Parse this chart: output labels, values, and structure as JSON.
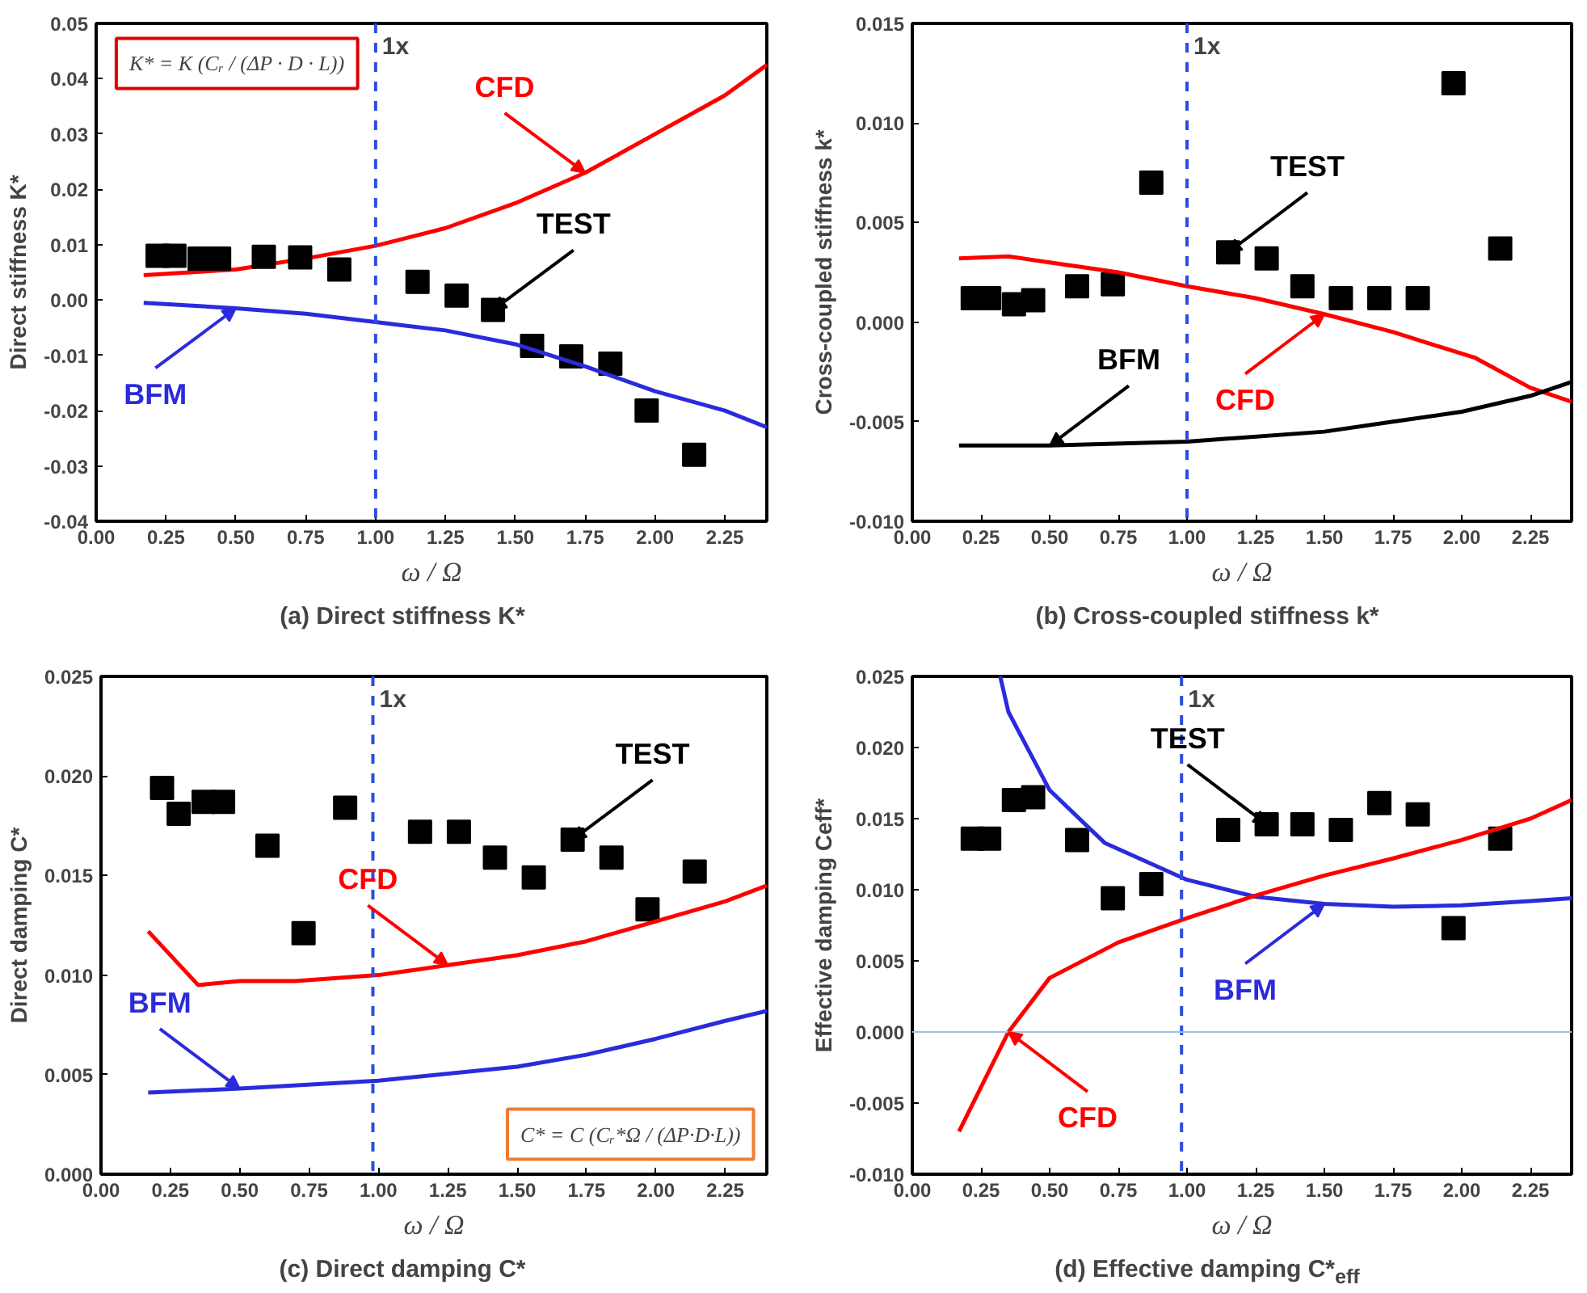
{
  "chart_data": [
    {
      "type": "line",
      "title": "(a) Direct stiffness K*",
      "xlabel": "ω / Ω",
      "ylabel": "Direct stiffness K*",
      "xlim": [
        0,
        2.4
      ],
      "ylim": [
        -0.04,
        0.05
      ],
      "grid": false,
      "xticks": [
        {
          "value": 0,
          "label": "0.00"
        },
        {
          "value": 0.25,
          "label": "0.25"
        },
        {
          "value": 0.5,
          "label": "0.50"
        },
        {
          "value": 0.75,
          "label": "0.75"
        },
        {
          "value": 1,
          "label": "1.00"
        },
        {
          "value": 1.25,
          "label": "1.25"
        },
        {
          "value": 1.5,
          "label": "1.50"
        },
        {
          "value": 1.75,
          "label": "1.75"
        },
        {
          "value": 2,
          "label": "2.00"
        },
        {
          "value": 2.25,
          "label": "2.25"
        }
      ],
      "yticks": [
        {
          "value": -0.04,
          "label": "-0.04"
        },
        {
          "value": -0.03,
          "label": "-0.03"
        },
        {
          "value": -0.02,
          "label": "-0.02"
        },
        {
          "value": -0.01,
          "label": "-0.01"
        },
        {
          "value": 0,
          "label": "0.00"
        },
        {
          "value": 0.01,
          "label": "0.01"
        },
        {
          "value": 0.02,
          "label": "0.02"
        },
        {
          "value": 0.03,
          "label": "0.03"
        },
        {
          "value": 0.04,
          "label": "0.04"
        },
        {
          "value": 0.05,
          "label": "0.05"
        }
      ],
      "series": [
        {
          "type": "line",
          "color": "#ff0000",
          "x": [
            0.17,
            0.5,
            0.75,
            1.0,
            1.25,
            1.5,
            1.75,
            2.0,
            2.25,
            2.4
          ],
          "values": [
            0.0045,
            0.0055,
            0.0075,
            0.0098,
            0.013,
            0.0175,
            0.023,
            0.03,
            0.037,
            0.0425
          ]
        },
        {
          "type": "scatter",
          "marker": "square",
          "color": "#000000",
          "x": [
            0.22,
            0.28,
            0.37,
            0.44,
            0.6,
            0.73,
            0.87,
            1.15,
            1.29,
            1.42,
            1.56,
            1.7,
            1.84,
            1.97,
            2.14
          ],
          "values": [
            0.008,
            0.008,
            0.0075,
            0.0075,
            0.0078,
            0.0077,
            0.0055,
            0.0033,
            0.0008,
            -0.0018,
            -0.0083,
            -0.0102,
            -0.0115,
            -0.02,
            -0.028
          ]
        },
        {
          "type": "line",
          "color": "#2b2bdc",
          "x": [
            0.17,
            0.5,
            0.75,
            1.0,
            1.25,
            1.5,
            1.75,
            2.0,
            2.25,
            2.4
          ],
          "values": [
            -0.0005,
            -0.0015,
            -0.0025,
            -0.004,
            -0.0055,
            -0.008,
            -0.012,
            -0.0165,
            -0.02,
            -0.023
          ]
        }
      ],
      "annotations": [
        {
          "text": "CFD",
          "x": 1.75,
          "y": 0.023
        },
        {
          "text": "TEST",
          "x": 1.42,
          "y": -0.0018
        },
        {
          "text": "BFM",
          "x": 0.5,
          "y": -0.0015
        },
        "K* = K (Cᵣ / (ΔP · D · L))"
      ],
      "ref_lines": [
        {
          "axis": "x",
          "value": 1.0,
          "label": "1x",
          "color": "#2b4de0",
          "line_style": "dashed"
        }
      ]
    },
    {
      "type": "line",
      "title": "(b) Cross-coupled stiffness k*",
      "xlabel": "ω / Ω",
      "ylabel": "Cross-coupled stiffness k*",
      "xlim": [
        0,
        2.4
      ],
      "ylim": [
        -0.01,
        0.015
      ],
      "grid": false,
      "xticks": [
        {
          "value": 0,
          "label": "0.00"
        },
        {
          "value": 0.25,
          "label": "0.25"
        },
        {
          "value": 0.5,
          "label": "0.50"
        },
        {
          "value": 0.75,
          "label": "0.75"
        },
        {
          "value": 1,
          "label": "1.00"
        },
        {
          "value": 1.25,
          "label": "1.25"
        },
        {
          "value": 1.5,
          "label": "1.50"
        },
        {
          "value": 1.75,
          "label": "1.75"
        },
        {
          "value": 2,
          "label": "2.00"
        },
        {
          "value": 2.25,
          "label": "2.25"
        }
      ],
      "yticks": [
        {
          "value": -0.01,
          "label": "-0.010"
        },
        {
          "value": -0.005,
          "label": "-0.005"
        },
        {
          "value": 0,
          "label": "0.000"
        },
        {
          "value": 0.005,
          "label": "0.005"
        },
        {
          "value": 0.01,
          "label": "0.010"
        },
        {
          "value": 0.015,
          "label": "0.015"
        }
      ],
      "series": [
        {
          "type": "scatter",
          "marker": "square",
          "color": "#000000",
          "x": [
            0.22,
            0.28,
            0.37,
            0.44,
            0.6,
            0.73,
            0.87,
            1.15,
            1.29,
            1.42,
            1.56,
            1.7,
            1.84,
            1.97,
            2.14
          ],
          "values": [
            0.0012,
            0.0012,
            0.0009,
            0.0011,
            0.0018,
            0.0019,
            0.007,
            0.0035,
            0.0032,
            0.0018,
            0.0012,
            0.0012,
            0.0012,
            0.012,
            0.0037
          ]
        },
        {
          "type": "line",
          "color": "#ff0000",
          "x": [
            0.17,
            0.35,
            0.5,
            0.75,
            1.0,
            1.25,
            1.5,
            1.75,
            2.05,
            2.25,
            2.4
          ],
          "values": [
            0.0032,
            0.0033,
            0.003,
            0.0025,
            0.0018,
            0.0012,
            0.0004,
            -0.0005,
            -0.0018,
            -0.0033,
            -0.004
          ]
        },
        {
          "type": "line",
          "color": "#000000",
          "x": [
            0.17,
            0.5,
            1.0,
            1.5,
            1.75,
            2.0,
            2.25,
            2.4
          ],
          "values": [
            -0.0062,
            -0.0062,
            -0.006,
            -0.0055,
            -0.005,
            -0.0045,
            -0.0037,
            -0.003
          ]
        }
      ],
      "annotations": [
        {
          "text": "TEST",
          "x": 1.15,
          "y": 0.0035
        },
        {
          "text": "CFD",
          "x": 1.5,
          "y": 0.0004
        },
        {
          "text": "BFM",
          "x": 0.5,
          "y": -0.0062
        }
      ],
      "ref_lines": [
        {
          "axis": "x",
          "value": 1.0,
          "label": "1x",
          "color": "#2b4de0",
          "line_style": "dashed"
        }
      ]
    },
    {
      "type": "line",
      "title": "(c) Direct damping C*",
      "xlabel": "ω / Ω",
      "ylabel": "Direct damping C*",
      "xlim": [
        0,
        2.4
      ],
      "ylim": [
        0,
        0.025
      ],
      "grid": false,
      "xticks": [
        {
          "value": 0,
          "label": "0.00"
        },
        {
          "value": 0.25,
          "label": "0.25"
        },
        {
          "value": 0.5,
          "label": "0.50"
        },
        {
          "value": 0.75,
          "label": "0.75"
        },
        {
          "value": 1,
          "label": "1.00"
        },
        {
          "value": 1.25,
          "label": "1.25"
        },
        {
          "value": 1.5,
          "label": "1.50"
        },
        {
          "value": 1.75,
          "label": "1.75"
        },
        {
          "value": 2,
          "label": "2.00"
        },
        {
          "value": 2.25,
          "label": "2.25"
        }
      ],
      "yticks": [
        {
          "value": 0,
          "label": "0.000"
        },
        {
          "value": 0.005,
          "label": "0.005"
        },
        {
          "value": 0.01,
          "label": "0.010"
        },
        {
          "value": 0.015,
          "label": "0.015"
        },
        {
          "value": 0.02,
          "label": "0.020"
        },
        {
          "value": 0.025,
          "label": "0.025"
        }
      ],
      "series": [
        {
          "type": "scatter",
          "marker": "square",
          "color": "#000000",
          "x": [
            0.22,
            0.28,
            0.37,
            0.44,
            0.6,
            0.73,
            0.88,
            1.15,
            1.29,
            1.42,
            1.56,
            1.7,
            1.84,
            1.97,
            2.14
          ],
          "values": [
            0.0194,
            0.0181,
            0.0187,
            0.0187,
            0.0165,
            0.0121,
            0.0184,
            0.0172,
            0.0172,
            0.0159,
            0.0149,
            0.0168,
            0.0159,
            0.0133,
            0.0152
          ]
        },
        {
          "type": "line",
          "color": "#ff0000",
          "x": [
            0.17,
            0.35,
            0.5,
            0.7,
            1.0,
            1.25,
            1.5,
            1.75,
            2.0,
            2.25,
            2.4
          ],
          "values": [
            0.0122,
            0.0095,
            0.0097,
            0.0097,
            0.01,
            0.0105,
            0.011,
            0.0117,
            0.0127,
            0.0137,
            0.0145
          ]
        },
        {
          "type": "line",
          "color": "#2b2bdc",
          "x": [
            0.17,
            0.5,
            1.0,
            1.5,
            1.75,
            2.0,
            2.25,
            2.4
          ],
          "values": [
            0.0041,
            0.0043,
            0.0047,
            0.0054,
            0.006,
            0.0068,
            0.0077,
            0.0082
          ]
        }
      ],
      "annotations": [
        {
          "text": "TEST",
          "x": 1.7,
          "y": 0.0168
        },
        {
          "text": "CFD",
          "x": 1.25,
          "y": 0.0105
        },
        {
          "text": "BFM",
          "x": 0.5,
          "y": 0.0043
        },
        "C* = C (Cᵣ*Ω / (ΔP·D·L))"
      ],
      "ref_lines": [
        {
          "axis": "x",
          "value": 0.98,
          "label": "1x",
          "color": "#2b4de0",
          "line_style": "dashed"
        }
      ]
    },
    {
      "type": "line",
      "title": "(d) Effective damping C*$_{eff}$",
      "xlabel": "ω / Ω",
      "ylabel": "Effective damping Ceff*",
      "xlim": [
        0,
        2.4
      ],
      "ylim": [
        -0.01,
        0.025
      ],
      "grid": false,
      "xticks": [
        {
          "value": 0,
          "label": "0.00"
        },
        {
          "value": 0.25,
          "label": "0.25"
        },
        {
          "value": 0.5,
          "label": "0.50"
        },
        {
          "value": 0.75,
          "label": "0.75"
        },
        {
          "value": 1,
          "label": "1.00"
        },
        {
          "value": 1.25,
          "label": "1.25"
        },
        {
          "value": 1.5,
          "label": "1.50"
        },
        {
          "value": 1.75,
          "label": "1.75"
        },
        {
          "value": 2,
          "label": "2.00"
        },
        {
          "value": 2.25,
          "label": "2.25"
        }
      ],
      "yticks": [
        {
          "value": -0.01,
          "label": "-0.010"
        },
        {
          "value": -0.005,
          "label": "-0.005"
        },
        {
          "value": 0,
          "label": "0.000"
        },
        {
          "value": 0.005,
          "label": "0.005"
        },
        {
          "value": 0.01,
          "label": "0.010"
        },
        {
          "value": 0.015,
          "label": "0.015"
        },
        {
          "value": 0.02,
          "label": "0.020"
        },
        {
          "value": 0.025,
          "label": "0.025"
        }
      ],
      "series": [
        {
          "type": "scatter",
          "marker": "square",
          "color": "#000000",
          "x": [
            0.22,
            0.28,
            0.37,
            0.44,
            0.6,
            0.73,
            0.87,
            1.15,
            1.29,
            1.42,
            1.56,
            1.7,
            1.84,
            1.97,
            2.14
          ],
          "values": [
            0.0136,
            0.0136,
            0.0163,
            0.0165,
            0.0135,
            0.0094,
            0.0104,
            0.0142,
            0.0146,
            0.0146,
            0.0142,
            0.0161,
            0.0153,
            0.0073,
            0.0136
          ]
        },
        {
          "type": "line",
          "color": "#2b2bdc",
          "x": [
            0.32,
            0.35,
            0.5,
            0.7,
            1.0,
            1.25,
            1.5,
            1.75,
            2.0,
            2.25,
            2.4
          ],
          "values": [
            0.025,
            0.0225,
            0.017,
            0.0133,
            0.0107,
            0.0095,
            0.009,
            0.0088,
            0.0089,
            0.0092,
            0.0094
          ]
        },
        {
          "type": "line",
          "color": "#ff0000",
          "x": [
            0.17,
            0.35,
            0.5,
            0.75,
            1.0,
            1.25,
            1.5,
            1.75,
            2.0,
            2.25,
            2.4
          ],
          "values": [
            -0.007,
            0.0,
            0.0038,
            0.0063,
            0.008,
            0.0096,
            0.011,
            0.0122,
            0.0135,
            0.015,
            0.0163
          ]
        }
      ],
      "annotations": [
        {
          "text": "TEST",
          "x": 1.29,
          "y": 0.0146
        },
        {
          "text": "BFM",
          "x": 1.5,
          "y": 0.009
        },
        {
          "text": "CFD",
          "x": 0.35,
          "y": 0.0
        }
      ],
      "ref_lines": [
        {
          "axis": "x",
          "value": 0.98,
          "label": "1x",
          "color": "#2b4de0",
          "line_style": "dashed"
        },
        {
          "axis": "y",
          "value": 0,
          "label": null,
          "color": "#9dc3e6",
          "line_style": "solid"
        }
      ]
    }
  ]
}
